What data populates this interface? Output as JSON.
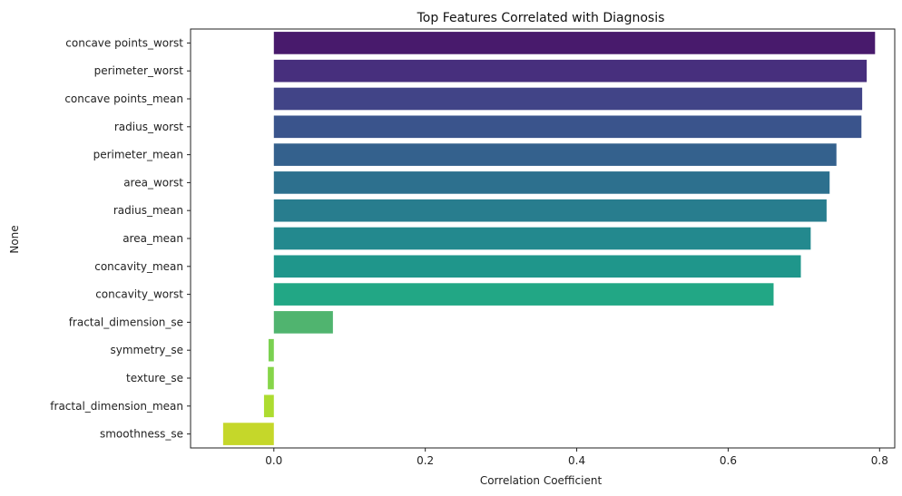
{
  "chart_data": {
    "type": "bar",
    "orientation": "horizontal",
    "title": "Top Features Correlated with Diagnosis",
    "xlabel": "Correlation Coefficient",
    "ylabel": "None",
    "xlim": [
      -0.11,
      0.82
    ],
    "xticks": [
      0.0,
      0.2,
      0.4,
      0.6,
      0.8
    ],
    "xtick_labels": [
      "0.0",
      "0.2",
      "0.4",
      "0.6",
      "0.8"
    ],
    "grid": false,
    "legend": "none",
    "colormap": "viridis",
    "categories": [
      "concave points_worst",
      "perimeter_worst",
      "concave points_mean",
      "radius_worst",
      "perimeter_mean",
      "area_worst",
      "radius_mean",
      "area_mean",
      "concavity_mean",
      "concavity_worst",
      "fractal_dimension_se",
      "symmetry_se",
      "texture_se",
      "fractal_dimension_mean",
      "smoothness_se"
    ],
    "values": [
      0.794,
      0.783,
      0.777,
      0.776,
      0.743,
      0.734,
      0.73,
      0.709,
      0.696,
      0.66,
      0.078,
      -0.007,
      -0.008,
      -0.013,
      -0.067
    ],
    "colors": [
      "#481a6c",
      "#472f7d",
      "#414487",
      "#3a548c",
      "#34618d",
      "#2d708e",
      "#287d8e",
      "#23898e",
      "#1f968b",
      "#22a785",
      "#50b46f",
      "#7ad151",
      "#86d549",
      "#addc30",
      "#c5d72a"
    ]
  }
}
